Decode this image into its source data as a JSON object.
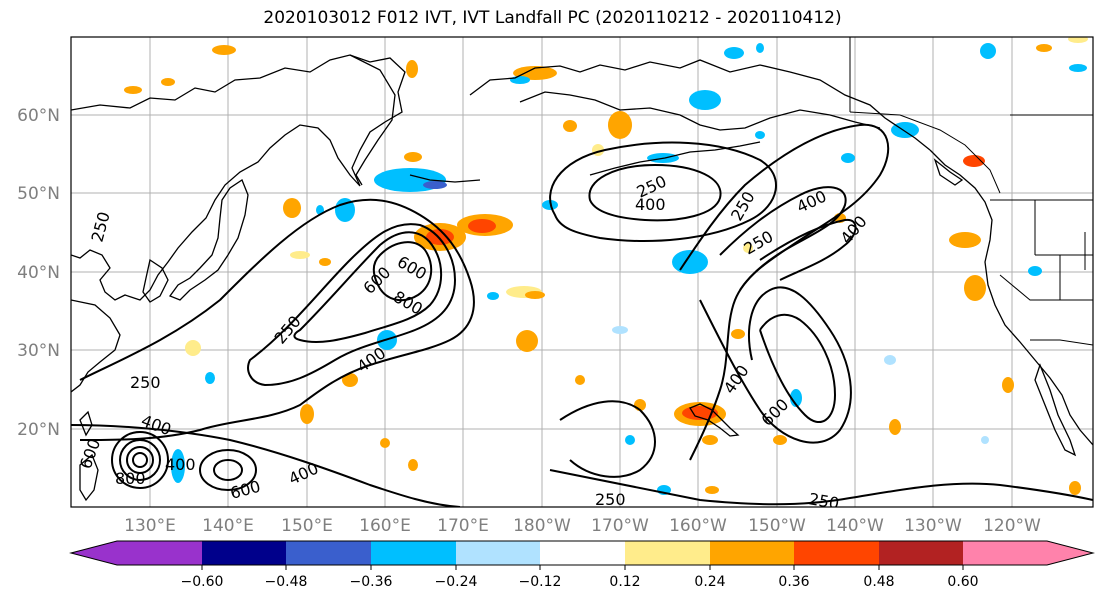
{
  "title": "2020103012 F012 IVT, IVT Landfall PC (2020110212 - 2020110412)",
  "map": {
    "lat_labels": [
      "60°N",
      "50°N",
      "40°N",
      "30°N",
      "20°N"
    ],
    "lon_labels": [
      "130°E",
      "140°E",
      "150°E",
      "160°E",
      "170°E",
      "180°W",
      "170°W",
      "160°W",
      "150°W",
      "140°W",
      "130°W",
      "120°W"
    ],
    "contour_levels": [
      "250",
      "400",
      "600",
      "800"
    ],
    "contour_labels": [
      {
        "text": "250",
        "name": "contour-label-250-west"
      },
      {
        "text": "250",
        "name": "contour-label-250-japan"
      },
      {
        "text": "600",
        "name": "contour-label-600-ar"
      },
      {
        "text": "800",
        "name": "contour-label-800-ar"
      },
      {
        "text": "250",
        "name": "contour-label-250-ar"
      },
      {
        "text": "400",
        "name": "contour-label-400-ar"
      },
      {
        "text": "400",
        "name": "contour-label-400-southwest"
      },
      {
        "text": "800",
        "name": "contour-label-800-typhoon"
      },
      {
        "text": "600",
        "name": "contour-label-600-typhoon"
      },
      {
        "text": "400",
        "name": "contour-label-400-typhoon"
      },
      {
        "text": "600",
        "name": "contour-label-600-south"
      },
      {
        "text": "400",
        "name": "contour-label-400-south"
      },
      {
        "text": "250",
        "name": "contour-label-250-gulf"
      },
      {
        "text": "400",
        "name": "contour-label-400-gulf"
      },
      {
        "text": "250",
        "name": "contour-label-250-east"
      },
      {
        "text": "400",
        "name": "contour-label-400-east"
      },
      {
        "text": "400",
        "name": "contour-label-400-east2"
      },
      {
        "text": "250",
        "name": "contour-label-250-east2"
      },
      {
        "text": "400",
        "name": "contour-label-400-subtrop"
      },
      {
        "text": "600",
        "name": "contour-label-600-subtrop"
      },
      {
        "text": "250",
        "name": "contour-label-250-bottom"
      },
      {
        "text": "250",
        "name": "contour-label-250-bottom2"
      },
      {
        "text": "600",
        "name": "contour-label-600-far-sw"
      }
    ]
  },
  "colorbar": {
    "ticks": [
      "−0.60",
      "−0.48",
      "−0.36",
      "−0.24",
      "−0.12",
      "0.12",
      "0.24",
      "0.36",
      "0.48",
      "0.60"
    ],
    "colors": [
      "#9932cc",
      "#00008b",
      "#3a5fcd",
      "#00bfff",
      "#b0e2ff",
      "#ffffff",
      "#ffec8b",
      "#ffa500",
      "#ff4500",
      "#b22222",
      "#ff82ab"
    ]
  }
}
